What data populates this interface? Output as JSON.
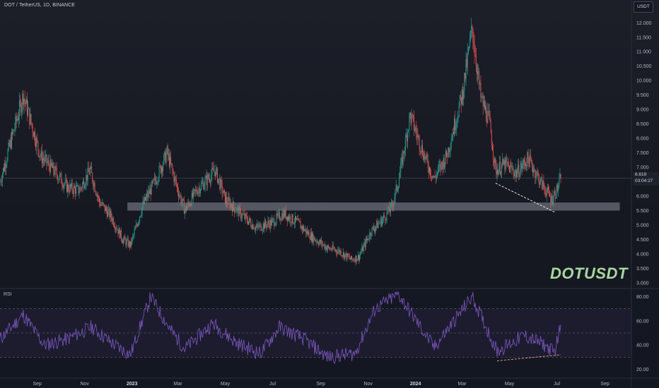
{
  "header": {
    "symbol_text": "DOT / TetherUS, 1D, BINANCE",
    "currency_button": "USDT"
  },
  "price_tag": {
    "price": "6.619",
    "countdown": "03:04:27"
  },
  "watermark": "DOTUSDT",
  "rsi_label": "RSI",
  "colors": {
    "background": "#131722",
    "bull": "#26a69a",
    "bear": "#ef5350",
    "rsi_line": "#7e57c2",
    "support_zone": "#787b86",
    "trendline": "#ffffff",
    "rsi_trendline": "#f2a3a3",
    "watermark": "#a9d8a0"
  },
  "chart_data": [
    {
      "type": "candlestick",
      "title": "DOT / TetherUS, 1D, BINANCE",
      "y_axis": {
        "range": [
          2.9,
          12.3
        ],
        "ticks": [
          "3.000",
          "3.500",
          "4.000",
          "4.500",
          "5.000",
          "5.500",
          "6.000",
          "6.500",
          "7.000",
          "7.500",
          "8.000",
          "8.500",
          "9.000",
          "9.500",
          "10.000",
          "10.500",
          "11.000",
          "11.500",
          "12.000"
        ]
      },
      "x_ticks": [
        "Sep",
        "Nov",
        "2023",
        "Mar",
        "May",
        "Jul",
        "Sep",
        "Nov",
        "2024",
        "Mar",
        "May",
        "Jul",
        "Sep"
      ],
      "x_range": [
        "2022-07-15",
        "2024-10-05"
      ],
      "close_path": [
        [
          "2022-07-15",
          6.5
        ],
        [
          "2022-08-14",
          9.5
        ],
        [
          "2022-09-05",
          7.4
        ],
        [
          "2022-09-22",
          6.9
        ],
        [
          "2022-10-10",
          6.3
        ],
        [
          "2022-10-25",
          6.2
        ],
        [
          "2022-11-08",
          6.9
        ],
        [
          "2022-11-20",
          5.8
        ],
        [
          "2022-12-05",
          5.3
        ],
        [
          "2022-12-20",
          4.5
        ],
        [
          "2022-12-30",
          4.3
        ],
        [
          "2023-01-15",
          5.7
        ],
        [
          "2023-02-01",
          6.6
        ],
        [
          "2023-02-15",
          7.5
        ],
        [
          "2023-02-28",
          6.3
        ],
        [
          "2023-03-10",
          5.5
        ],
        [
          "2023-03-25",
          6.2
        ],
        [
          "2023-04-05",
          6.5
        ],
        [
          "2023-04-18",
          6.9
        ],
        [
          "2023-05-01",
          5.9
        ],
        [
          "2023-05-20",
          5.4
        ],
        [
          "2023-06-10",
          4.9
        ],
        [
          "2023-06-20",
          5.0
        ],
        [
          "2023-07-01",
          5.1
        ],
        [
          "2023-07-15",
          5.4
        ],
        [
          "2023-08-01",
          5.1
        ],
        [
          "2023-08-20",
          4.6
        ],
        [
          "2023-09-10",
          4.2
        ],
        [
          "2023-09-25",
          4.1
        ],
        [
          "2023-10-10",
          3.8
        ],
        [
          "2023-10-20",
          3.9
        ],
        [
          "2023-11-05",
          4.8
        ],
        [
          "2023-11-20",
          5.2
        ],
        [
          "2023-12-01",
          5.6
        ],
        [
          "2023-12-10",
          6.5
        ],
        [
          "2023-12-25",
          8.8
        ],
        [
          "2024-01-15",
          7.2
        ],
        [
          "2024-01-25",
          6.6
        ],
        [
          "2024-02-10",
          7.4
        ],
        [
          "2024-03-01",
          9.5
        ],
        [
          "2024-03-14",
          11.8
        ],
        [
          "2024-03-25",
          9.4
        ],
        [
          "2024-04-05",
          8.6
        ],
        [
          "2024-04-13",
          6.9
        ],
        [
          "2024-04-25",
          7.1
        ],
        [
          "2024-05-10",
          6.8
        ],
        [
          "2024-05-25",
          7.3
        ],
        [
          "2024-06-10",
          6.5
        ],
        [
          "2024-06-24",
          5.9
        ],
        [
          "2024-07-01",
          6.2
        ],
        [
          "2024-07-06",
          6.619
        ]
      ],
      "last_price": 6.619,
      "support_zone": {
        "from": [
          "2022-12-26",
          5.5
        ],
        "to": [
          "2024-09-20",
          5.78
        ]
      },
      "trendline": {
        "from": [
          "2024-04-13",
          6.45
        ],
        "to": [
          "2024-06-28",
          5.45
        ]
      }
    },
    {
      "type": "line",
      "title": "RSI",
      "y_axis": {
        "range": [
          15,
          85
        ],
        "ticks": [
          "20.00",
          "40.00",
          "60.00",
          "80.00"
        ]
      },
      "levels": [
        30,
        50,
        70
      ],
      "x_range": [
        "2022-07-15",
        "2024-10-05"
      ],
      "series": [
        {
          "values": [
            [
              "2022-07-15",
              45
            ],
            [
              "2022-08-14",
              65
            ],
            [
              "2022-09-10",
              40
            ],
            [
              "2022-10-10",
              45
            ],
            [
              "2022-11-10",
              55
            ],
            [
              "2022-12-05",
              42
            ],
            [
              "2022-12-30",
              32
            ],
            [
              "2023-01-25",
              80
            ],
            [
              "2023-02-20",
              52
            ],
            [
              "2023-03-10",
              37
            ],
            [
              "2023-04-15",
              58
            ],
            [
              "2023-05-15",
              42
            ],
            [
              "2023-06-15",
              33
            ],
            [
              "2023-07-10",
              55
            ],
            [
              "2023-08-10",
              45
            ],
            [
              "2023-09-10",
              30
            ],
            [
              "2023-10-15",
              33
            ],
            [
              "2023-11-10",
              70
            ],
            [
              "2023-12-10",
              82
            ],
            [
              "2024-01-25",
              38
            ],
            [
              "2024-03-14",
              80
            ],
            [
              "2024-04-15",
              35
            ],
            [
              "2024-05-20",
              48
            ],
            [
              "2024-06-15",
              40
            ],
            [
              "2024-06-28",
              34
            ],
            [
              "2024-07-06",
              57
            ]
          ]
        }
      ],
      "trendline": {
        "from": [
          "2024-04-15",
          27
        ],
        "to": [
          "2024-07-06",
          32
        ]
      }
    }
  ]
}
